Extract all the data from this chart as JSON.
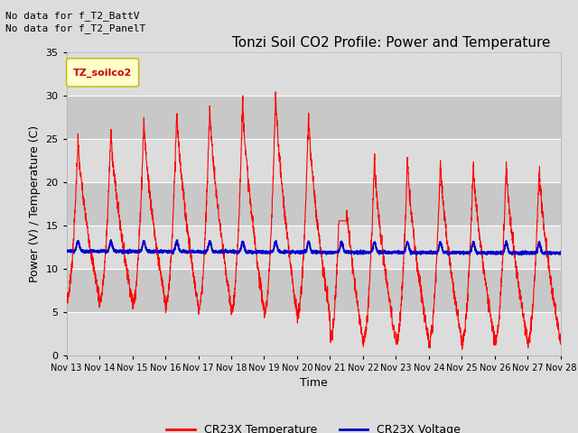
{
  "title": "Tonzi Soil CO2 Profile: Power and Temperature",
  "xlabel": "Time",
  "ylabel": "Power (V) / Temperature (C)",
  "ylim": [
    0,
    35
  ],
  "yticks": [
    0,
    5,
    10,
    15,
    20,
    25,
    30,
    35
  ],
  "x_labels": [
    "Nov 13",
    "Nov 14",
    "Nov 15",
    "Nov 16",
    "Nov 17",
    "Nov 18",
    "Nov 19",
    "Nov 20",
    "Nov 21",
    "Nov 22",
    "Nov 23",
    "Nov 24",
    "Nov 25",
    "Nov 26",
    "Nov 27",
    "Nov 28"
  ],
  "header_text1": "No data for f_T2_BattV",
  "header_text2": "No data for f_T2_PanelT",
  "legend_box_label": "TZ_soilco2",
  "legend_temp_label": "CR23X Temperature",
  "legend_volt_label": "CR23X Voltage",
  "temp_color": "#FF0000",
  "volt_color": "#0000CC",
  "bg_light": "#DCDCDC",
  "bg_dark": "#C8C8C8",
  "title_fontsize": 11,
  "axis_fontsize": 9,
  "tick_fontsize": 8
}
